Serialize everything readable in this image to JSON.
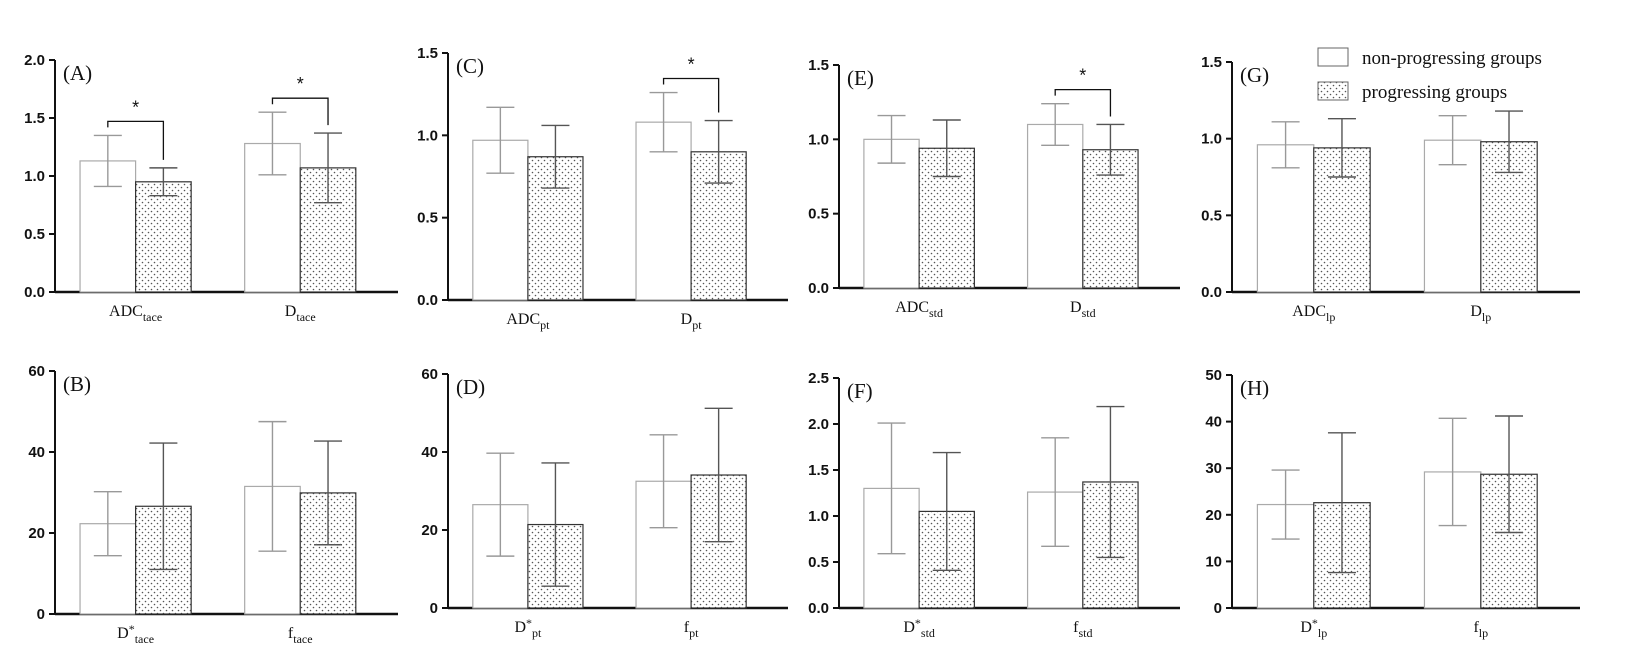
{
  "legend": {
    "items": [
      {
        "label": "non-progressing groups",
        "pattern": "plain"
      },
      {
        "label": "progressing groups",
        "pattern": "dotted"
      }
    ]
  },
  "chart_data": [
    {
      "panel": "(A)",
      "type": "bar",
      "ylim": [
        0,
        2.0
      ],
      "yticks": [
        "0.0",
        "0.5",
        "1.0",
        "1.5",
        "2.0"
      ],
      "categories": [
        {
          "base": "ADC",
          "sub": "tace",
          "sup": ""
        },
        {
          "base": "D",
          "sub": "tace",
          "sup": ""
        }
      ],
      "series": [
        {
          "values": [
            1.13,
            1.28
          ],
          "errors": [
            0.22,
            0.27
          ]
        },
        {
          "values": [
            0.95,
            1.07
          ],
          "errors": [
            0.12,
            0.3
          ]
        }
      ],
      "significance": [
        {
          "category": 0,
          "label": "*"
        },
        {
          "category": 1,
          "label": "*"
        }
      ]
    },
    {
      "panel": "(B)",
      "type": "bar",
      "ylim": [
        0,
        60
      ],
      "yticks": [
        "0",
        "20",
        "40",
        "60"
      ],
      "categories": [
        {
          "base": "D",
          "sub": "tace",
          "sup": "*"
        },
        {
          "base": "f",
          "sub": "tace",
          "sup": ""
        }
      ],
      "series": [
        {
          "values": [
            22.3,
            31.5
          ],
          "errors": [
            7.9,
            16.0
          ]
        },
        {
          "values": [
            26.6,
            29.9
          ],
          "errors": [
            15.6,
            12.8
          ]
        }
      ],
      "significance": []
    },
    {
      "panel": "(C)",
      "type": "bar",
      "ylim": [
        0,
        1.5
      ],
      "yticks": [
        "0.0",
        "0.5",
        "1.0",
        "1.5"
      ],
      "categories": [
        {
          "base": "ADC",
          "sub": "pt",
          "sup": ""
        },
        {
          "base": "D",
          "sub": "pt",
          "sup": ""
        }
      ],
      "series": [
        {
          "values": [
            0.97,
            1.08
          ],
          "errors": [
            0.2,
            0.18
          ]
        },
        {
          "values": [
            0.87,
            0.9
          ],
          "errors": [
            0.19,
            0.19
          ]
        }
      ],
      "significance": [
        {
          "category": 1,
          "label": "*"
        }
      ]
    },
    {
      "panel": "(D)",
      "type": "bar",
      "ylim": [
        0,
        60
      ],
      "yticks": [
        "0",
        "20",
        "40",
        "60"
      ],
      "categories": [
        {
          "base": "D",
          "sub": "pt",
          "sup": "*"
        },
        {
          "base": "f",
          "sub": "pt",
          "sup": ""
        }
      ],
      "series": [
        {
          "values": [
            26.5,
            32.5
          ],
          "errors": [
            13.2,
            11.9
          ]
        },
        {
          "values": [
            21.4,
            34.1
          ],
          "errors": [
            15.8,
            17.1
          ]
        }
      ],
      "significance": []
    },
    {
      "panel": "(E)",
      "type": "bar",
      "ylim": [
        0,
        1.5
      ],
      "yticks": [
        "0.0",
        "0.5",
        "1.0",
        "1.5"
      ],
      "categories": [
        {
          "base": "ADC",
          "sub": "std",
          "sup": ""
        },
        {
          "base": "D",
          "sub": "std",
          "sup": ""
        }
      ],
      "series": [
        {
          "values": [
            1.0,
            1.1
          ],
          "errors": [
            0.16,
            0.14
          ]
        },
        {
          "values": [
            0.94,
            0.93
          ],
          "errors": [
            0.19,
            0.17
          ]
        }
      ],
      "significance": [
        {
          "category": 1,
          "label": "*"
        }
      ]
    },
    {
      "panel": "(F)",
      "type": "bar",
      "ylim": [
        0,
        2.5
      ],
      "yticks": [
        "0.0",
        "0.5",
        "1.0",
        "1.5",
        "2.0",
        "2.5"
      ],
      "categories": [
        {
          "base": "D",
          "sub": "std",
          "sup": "*"
        },
        {
          "base": "f",
          "sub": "std",
          "sup": ""
        }
      ],
      "series": [
        {
          "values": [
            1.3,
            1.26
          ],
          "errors": [
            0.71,
            0.59
          ]
        },
        {
          "values": [
            1.05,
            1.37
          ],
          "errors": [
            0.64,
            0.82
          ]
        }
      ],
      "significance": []
    },
    {
      "panel": "(G)",
      "type": "bar",
      "ylim": [
        0,
        1.5
      ],
      "yticks": [
        "0.0",
        "0.5",
        "1.0",
        "1.5"
      ],
      "categories": [
        {
          "base": "ADC",
          "sub": "lp",
          "sup": ""
        },
        {
          "base": "D",
          "sub": "lp",
          "sup": ""
        }
      ],
      "series": [
        {
          "values": [
            0.96,
            0.99
          ],
          "errors": [
            0.15,
            0.16
          ]
        },
        {
          "values": [
            0.94,
            0.98
          ],
          "errors": [
            0.19,
            0.2
          ]
        }
      ],
      "significance": []
    },
    {
      "panel": "(H)",
      "type": "bar",
      "ylim": [
        0,
        50
      ],
      "yticks": [
        "0",
        "10",
        "20",
        "30",
        "40",
        "50"
      ],
      "categories": [
        {
          "base": "D",
          "sub": "lp",
          "sup": "*"
        },
        {
          "base": "f",
          "sub": "lp",
          "sup": ""
        }
      ],
      "series": [
        {
          "values": [
            22.2,
            29.2
          ],
          "errors": [
            7.4,
            11.5
          ]
        },
        {
          "values": [
            22.6,
            28.7
          ],
          "errors": [
            15.0,
            12.5
          ]
        }
      ],
      "significance": []
    }
  ]
}
